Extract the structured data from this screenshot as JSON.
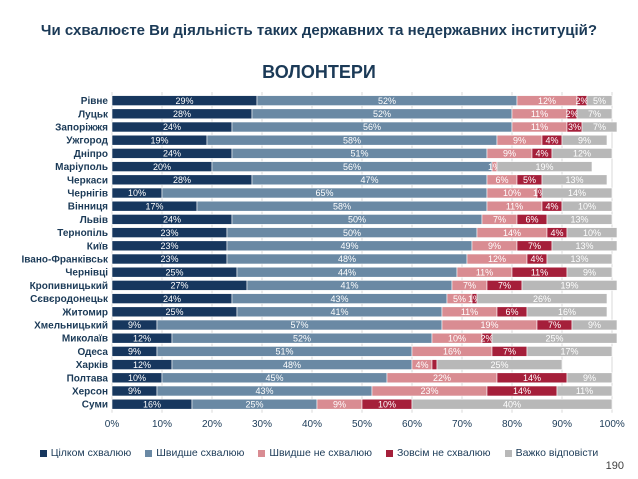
{
  "page_title": "Чи схвалюєте Ви діяльність таких державних та недержавних інституцій?",
  "page_number": "190",
  "chart_data": {
    "type": "bar",
    "orientation": "horizontal",
    "stacked": true,
    "title": "ВОЛОНТЕРИ",
    "xlim": [
      0,
      100
    ],
    "x_ticks": [
      "0%",
      "10%",
      "20%",
      "30%",
      "40%",
      "50%",
      "60%",
      "70%",
      "80%",
      "90%",
      "100%"
    ],
    "grid": true,
    "legend_position": "bottom",
    "categories": [
      "Рівне",
      "Луцьк",
      "Запоріжжя",
      "Ужгород",
      "Дніпро",
      "Маріуполь",
      "Черкаси",
      "Чернігів",
      "Вінниця",
      "Львів",
      "Тернопіль",
      "Київ",
      "Івано-Франківськ",
      "Чернівці",
      "Кропивницький",
      "Сєвєродонецьк",
      "Житомир",
      "Хмельницький",
      "Миколаїв",
      "Одеса",
      "Харків",
      "Полтава",
      "Херсон",
      "Суми"
    ],
    "series": [
      {
        "name": "Цілком схвалюю",
        "color": "#17375e",
        "label_color": "#ffffff",
        "values": [
          29,
          28,
          24,
          19,
          24,
          20,
          28,
          10,
          17,
          24,
          23,
          23,
          23,
          25,
          27,
          24,
          25,
          9,
          12,
          9,
          12,
          10,
          9,
          16
        ],
        "labels": [
          "29%",
          "28%",
          "24%",
          "19%",
          "24%",
          "20%",
          "28%",
          "10%",
          "17%",
          "24%",
          "23%",
          "23%",
          "23%",
          "25%",
          "27%",
          "24%",
          "25%",
          "9%",
          "12%",
          "9%",
          "12%",
          "10%",
          "9%",
          "16%"
        ]
      },
      {
        "name": "Швидше схвалюю",
        "color": "#6a89a4",
        "label_color": "#ffffff",
        "values": [
          52,
          52,
          56,
          58,
          51,
          56,
          47,
          65,
          58,
          50,
          50,
          49,
          48,
          44,
          41,
          43,
          41,
          57,
          52,
          51,
          48,
          45,
          43,
          25
        ],
        "labels": [
          "52%",
          "52%",
          "56%",
          "58%",
          "51%",
          "56%",
          "47%",
          "65%",
          "58%",
          "50%",
          "50%",
          "49%",
          "48%",
          "44%",
          "41%",
          "43%",
          "41%",
          "57%",
          "52%",
          "51%",
          "48%",
          "45%",
          "43%",
          "25%"
        ]
      },
      {
        "name": "Швидше не схвалюю",
        "color": "#d98c92",
        "label_color": "#ffffff",
        "values": [
          12,
          11,
          11,
          9,
          9,
          1,
          6,
          10,
          11,
          7,
          14,
          9,
          12,
          11,
          7,
          5,
          11,
          19,
          10,
          16,
          4,
          22,
          23,
          9
        ],
        "labels": [
          "12%",
          "11%",
          "11%",
          "9%",
          "9%",
          "1%",
          "6%",
          "10%",
          "11%",
          "7%",
          "14%",
          "9%",
          "12%",
          "11%",
          "7%",
          "5%",
          "11%",
          "19%",
          "10%",
          "16%",
          "4%",
          "22%",
          "23%",
          "9%"
        ]
      },
      {
        "name": "Зовсім не схвалюю",
        "color": "#a51f3a",
        "label_color": "#ffffff",
        "values": [
          2,
          2,
          3,
          4,
          4,
          0,
          5,
          1,
          4,
          6,
          4,
          7,
          4,
          11,
          7,
          1,
          6,
          7,
          2,
          7,
          1,
          14,
          14,
          10
        ],
        "labels": [
          "2%",
          "2%",
          "3%",
          "4%",
          "4%",
          "",
          "5%",
          "1%",
          "4%",
          "6%",
          "4%",
          "7%",
          "4%",
          "11%",
          "7%",
          "1%",
          "6%",
          "7%",
          "2%",
          "7%",
          "",
          "14%",
          "14%",
          "10%"
        ]
      },
      {
        "name": "Важко відповісти",
        "color": "#b8b8b8",
        "label_color": "#ffffff",
        "values": [
          5,
          7,
          7,
          9,
          12,
          19,
          13,
          14,
          10,
          13,
          10,
          13,
          13,
          9,
          19,
          26,
          16,
          9,
          25,
          17,
          25,
          9,
          11,
          40
        ],
        "labels": [
          "5%",
          "7%",
          "7%",
          "9%",
          "12%",
          "19%",
          "13%",
          "14%",
          "10%",
          "13%",
          "10%",
          "13%",
          "13%",
          "9%",
          "19%",
          "26%",
          "16%",
          "9%",
          "25%",
          "17%",
          "25%",
          "9%",
          "11%",
          "40%"
        ]
      }
    ]
  }
}
